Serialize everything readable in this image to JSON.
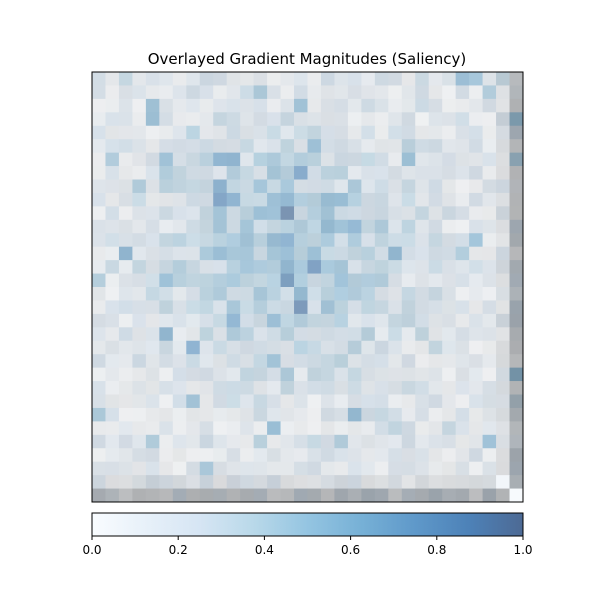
{
  "chart_data": {
    "type": "heatmap",
    "title": "Overlayed Gradient Magnitudes (Saliency)",
    "grid_rows": 32,
    "grid_cols": 32,
    "colormap": "Blues",
    "overlay_alpha": 0.5,
    "colorbar": {
      "orientation": "horizontal",
      "position": "bottom",
      "vmin": 0.0,
      "vmax": 1.0,
      "tick_values": [
        0.0,
        0.2,
        0.4,
        0.6,
        0.8,
        1.0
      ],
      "tick_labels": [
        "0.0",
        "0.2",
        "0.4",
        "0.6",
        "0.8",
        "1.0"
      ]
    },
    "axes_visible": false,
    "legend": "none",
    "colors": {
      "low": "#f7fbff",
      "mid": "#9ecae1",
      "high": "#08306b",
      "frame": "#000000"
    }
  }
}
